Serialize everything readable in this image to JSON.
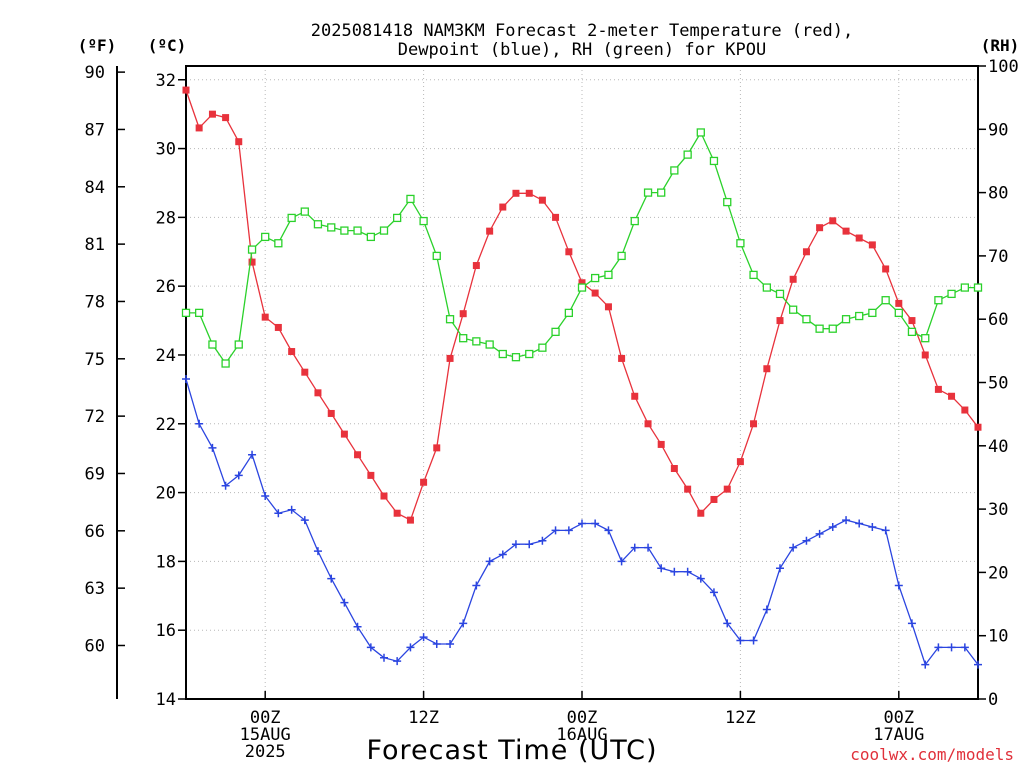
{
  "chart_data": {
    "type": "line",
    "title_line1": "2025081418 NAM3KM Forecast 2-meter Temperature (red),",
    "title_line2": "Dewpoint (blue), RH (green) for KPOU",
    "xlabel": "Forecast Time (UTC)",
    "credit": "coolwx.com/models",
    "units": {
      "f": "(ºF)",
      "c": "(ºC)",
      "rh": "(RH)"
    },
    "xlim": [
      -5,
      45
    ],
    "celsius_axis": {
      "ylim": [
        14,
        32.4
      ],
      "ticks": [
        14,
        16,
        18,
        20,
        22,
        24,
        26,
        28,
        30,
        32
      ]
    },
    "fahrenheit_axis": {
      "ticks": [
        60,
        63,
        66,
        69,
        72,
        75,
        78,
        81,
        84,
        87,
        90
      ]
    },
    "rh_axis": {
      "ylim": [
        0,
        100
      ],
      "ticks": [
        0,
        10,
        20,
        30,
        40,
        50,
        60,
        70,
        80,
        90,
        100
      ]
    },
    "x_ticks": [
      {
        "hour": 0,
        "lines": [
          "00Z",
          "15AUG",
          "2025"
        ]
      },
      {
        "hour": 10,
        "lines": [
          "12Z"
        ]
      },
      {
        "hour": 20,
        "lines": [
          "00Z",
          "16AUG"
        ]
      },
      {
        "hour": 30,
        "lines": [
          "12Z"
        ]
      },
      {
        "hour": 40,
        "lines": [
          "00Z",
          "17AUG"
        ]
      }
    ],
    "series": [
      {
        "name": "Temperature",
        "color": "#e8323c",
        "marker": "filled-square",
        "axis": "celsius",
        "x": [
          -5,
          -4.17,
          -3.33,
          -2.5,
          -1.67,
          -0.83,
          0,
          0.83,
          1.67,
          2.5,
          3.33,
          4.17,
          5,
          5.83,
          6.67,
          7.5,
          8.33,
          9.17,
          10,
          10.83,
          11.67,
          12.5,
          13.33,
          14.17,
          15,
          15.83,
          16.67,
          17.5,
          18.33,
          19.17,
          20,
          20.83,
          21.67,
          22.5,
          23.33,
          24.17,
          25,
          25.83,
          26.67,
          27.5,
          28.33,
          29.17,
          30,
          30.83,
          31.67,
          32.5,
          33.33,
          34.17,
          35,
          35.83,
          36.67,
          37.5,
          38.33,
          39.17,
          40,
          40.83,
          41.67,
          42.5,
          43.33,
          44.17,
          45
        ],
        "values": [
          31.7,
          30.6,
          31.0,
          30.9,
          30.2,
          26.7,
          25.1,
          24.8,
          24.1,
          23.5,
          22.9,
          22.3,
          21.7,
          21.1,
          20.5,
          19.9,
          19.4,
          19.2,
          20.3,
          21.3,
          23.9,
          25.2,
          26.6,
          27.6,
          28.3,
          28.7,
          28.7,
          28.5,
          28.0,
          27.0,
          26.1,
          25.8,
          25.4,
          23.9,
          22.8,
          22.0,
          21.4,
          20.7,
          20.1,
          19.4,
          19.8,
          20.1,
          20.9,
          22.0,
          23.6,
          25.0,
          26.2,
          27.0,
          27.7,
          27.9,
          27.6,
          27.4,
          27.2,
          26.5,
          25.5,
          25.0,
          24.0,
          23.0,
          22.8,
          22.4,
          21.9
        ]
      },
      {
        "name": "Dewpoint",
        "color": "#2b45e0",
        "marker": "plus",
        "axis": "celsius",
        "x": [
          -5,
          -4.17,
          -3.33,
          -2.5,
          -1.67,
          -0.83,
          0,
          0.83,
          1.67,
          2.5,
          3.33,
          4.17,
          5,
          5.83,
          6.67,
          7.5,
          8.33,
          9.17,
          10,
          10.83,
          11.67,
          12.5,
          13.33,
          14.17,
          15,
          15.83,
          16.67,
          17.5,
          18.33,
          19.17,
          20,
          20.83,
          21.67,
          22.5,
          23.33,
          24.17,
          25,
          25.83,
          26.67,
          27.5,
          28.33,
          29.17,
          30,
          30.83,
          31.67,
          32.5,
          33.33,
          34.17,
          35,
          35.83,
          36.67,
          37.5,
          38.33,
          39.17,
          40,
          40.83,
          41.67,
          42.5,
          43.33,
          44.17,
          45
        ],
        "values": [
          23.3,
          22.0,
          21.3,
          20.2,
          20.5,
          21.1,
          19.9,
          19.4,
          19.5,
          19.2,
          18.3,
          17.5,
          16.8,
          16.1,
          15.5,
          15.2,
          15.1,
          15.5,
          15.8,
          15.6,
          15.6,
          16.2,
          17.3,
          18.0,
          18.2,
          18.5,
          18.5,
          18.6,
          18.9,
          18.9,
          19.1,
          19.1,
          18.9,
          18.0,
          18.4,
          18.4,
          17.8,
          17.7,
          17.7,
          17.5,
          17.1,
          16.2,
          15.7,
          15.7,
          16.6,
          17.8,
          18.4,
          18.6,
          18.8,
          19.0,
          19.2,
          19.1,
          19.0,
          18.9,
          17.3,
          16.2,
          15.0,
          15.5,
          15.5,
          15.5,
          15.0
        ]
      },
      {
        "name": "RH",
        "color": "#2bd12b",
        "marker": "open-square",
        "axis": "rh",
        "x": [
          -5,
          -4.17,
          -3.33,
          -2.5,
          -1.67,
          -0.83,
          0,
          0.83,
          1.67,
          2.5,
          3.33,
          4.17,
          5,
          5.83,
          6.67,
          7.5,
          8.33,
          9.17,
          10,
          10.83,
          11.67,
          12.5,
          13.33,
          14.17,
          15,
          15.83,
          16.67,
          17.5,
          18.33,
          19.17,
          20,
          20.83,
          21.67,
          22.5,
          23.33,
          24.17,
          25,
          25.83,
          26.67,
          27.5,
          28.33,
          29.17,
          30,
          30.83,
          31.67,
          32.5,
          33.33,
          34.17,
          35,
          35.83,
          36.67,
          37.5,
          38.33,
          39.17,
          40,
          40.83,
          41.67,
          42.5,
          43.33,
          44.17,
          45
        ],
        "values": [
          61,
          61,
          56,
          53,
          56,
          71,
          73,
          72,
          76,
          77,
          75,
          74.5,
          74,
          74,
          73,
          74,
          76,
          79,
          75.5,
          70,
          60,
          57,
          56.5,
          56,
          54.5,
          54,
          54.5,
          55.5,
          58,
          61,
          65,
          66.5,
          67,
          70,
          75.5,
          80,
          80,
          83.5,
          86,
          89.5,
          85,
          78.5,
          72,
          67,
          65,
          64,
          61.5,
          60,
          58.5,
          58.5,
          60,
          60.5,
          61,
          63,
          61,
          58,
          57,
          63,
          64,
          65,
          65
        ]
      }
    ]
  }
}
